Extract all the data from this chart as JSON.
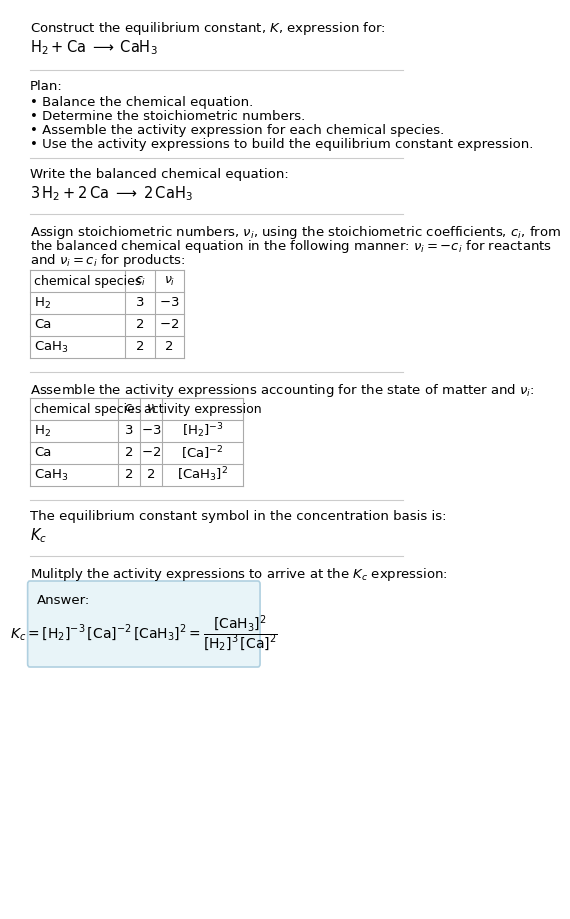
{
  "title_line1": "Construct the equilibrium constant, $K$, expression for:",
  "title_line2": "$\\mathrm{H_2 + Ca \\;\\longrightarrow\\; CaH_3}$",
  "plan_header": "Plan:",
  "plan_bullets": [
    "\\textbullet  Balance the chemical equation.",
    "\\textbullet  Determine the stoichiometric numbers.",
    "\\textbullet  Assemble the activity expression for each chemical species.",
    "\\textbullet  Use the activity expressions to build the equilibrium constant expression."
  ],
  "balanced_header": "Write the balanced chemical equation:",
  "balanced_eq": "$\\mathrm{3\\, H_2 + 2\\, Ca \\;\\longrightarrow\\; 2\\, CaH_3}$",
  "stoich_header": "Assign stoichiometric numbers, $\\nu_i$, using the stoichiometric coefficients, $c_i$, from\nthe balanced chemical equation in the following manner: $\\nu_i = -c_i$ for reactants\nand $\\nu_i = c_i$ for products:",
  "table1_headers": [
    "chemical species",
    "$c_i$",
    "$\\nu_i$"
  ],
  "table1_rows": [
    [
      "$\\mathrm{H_2}$",
      "3",
      "$-3$"
    ],
    [
      "Ca",
      "2",
      "$-2$"
    ],
    [
      "$\\mathrm{CaH_3}$",
      "2",
      "2"
    ]
  ],
  "activity_header": "Assemble the activity expressions accounting for the state of matter and $\\nu_i$:",
  "table2_headers": [
    "chemical species",
    "$c_i$",
    "$\\nu_i$",
    "activity expression"
  ],
  "table2_rows": [
    [
      "$\\mathrm{H_2}$",
      "3",
      "$-3$",
      "$[\\mathrm{H_2}]^{-3}$"
    ],
    [
      "Ca",
      "2",
      "$-2$",
      "$[\\mathrm{Ca}]^{-2}$"
    ],
    [
      "$\\mathrm{CaH_3}$",
      "2",
      "2",
      "$[\\mathrm{CaH_3}]^2$"
    ]
  ],
  "kc_symbol_text": "The equilibrium constant symbol in the concentration basis is:",
  "kc_symbol": "$K_c$",
  "multiply_text": "Mulitply the activity expressions to arrive at the $K_c$ expression:",
  "answer_label": "Answer:",
  "answer_eq": "$K_c = [\\mathrm{H_2}]^{-3}\\, [\\mathrm{Ca}]^{-2}\\, [\\mathrm{CaH_3}]^2 = \\dfrac{[\\mathrm{CaH_3}]^2}{[\\mathrm{H_2}]^3\\, [\\mathrm{Ca}]^2}$",
  "bg_color": "#ffffff",
  "answer_box_color": "#e8f4f8",
  "answer_box_edge": "#b0d0e0",
  "table_border_color": "#aaaaaa",
  "text_color": "#000000",
  "font_size": 9.5
}
